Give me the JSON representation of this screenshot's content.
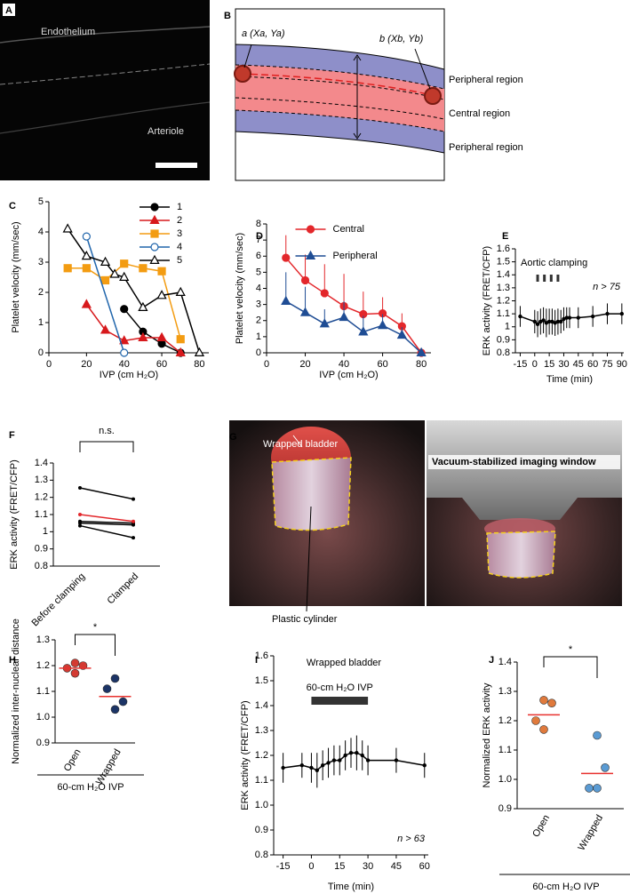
{
  "images": [
    {
      "label": "A",
      "texts": [
        "Endothelium",
        "Arteriole"
      ]
    },
    {
      "label": "B",
      "texts": [
        "a (Xa, Ya)",
        "b (Xb, Yb)",
        "Peripheral region",
        "Central region",
        "Peripheral region"
      ]
    },
    {
      "label": "G",
      "texts": [
        "Wrapped bladder",
        "Vacuum-stabilized imaging window",
        "Plastic cylinder"
      ]
    }
  ],
  "chart_data": [
    {
      "type": "line",
      "panel_label": "C",
      "xlabel": "IVP (cm H₂O)",
      "ylabel": "Platelet velocity (mm/sec)",
      "xlim": [
        0,
        85
      ],
      "xticks": [
        0,
        20,
        40,
        60,
        80
      ],
      "ylim": [
        0,
        5
      ],
      "yticks": [
        0,
        1,
        2,
        3,
        4,
        5
      ],
      "legend": "upper right",
      "series": [
        {
          "name": "1",
          "color": "#000000",
          "marker": "circle",
          "filled": true,
          "x": [
            40,
            50,
            60,
            70
          ],
          "values": [
            1.45,
            0.7,
            0.3,
            0
          ]
        },
        {
          "name": "2",
          "color": "#d7191c",
          "marker": "triangle",
          "filled": true,
          "x": [
            20,
            30,
            40,
            50,
            60,
            70
          ],
          "values": [
            1.6,
            0.75,
            0.4,
            0.5,
            0.5,
            0
          ]
        },
        {
          "name": "3",
          "color": "#f39c12",
          "marker": "square",
          "filled": true,
          "x": [
            10,
            20,
            30,
            40,
            50,
            60,
            70
          ],
          "values": [
            2.8,
            2.8,
            2.4,
            2.95,
            2.8,
            2.7,
            0.45
          ]
        },
        {
          "name": "4",
          "color": "#2166ac",
          "marker": "circle",
          "filled": false,
          "x": [
            20,
            40
          ],
          "values": [
            3.85,
            0
          ]
        },
        {
          "name": "5",
          "color": "#000000",
          "marker": "triangle",
          "filled": false,
          "x": [
            10,
            20,
            30,
            35,
            40,
            50,
            60,
            70,
            80
          ],
          "values": [
            4.1,
            3.2,
            3.0,
            2.6,
            2.5,
            1.5,
            1.9,
            2.0,
            0
          ]
        }
      ]
    },
    {
      "type": "line",
      "panel_label": "D",
      "xlabel": "IVP (cm H₂O)",
      "ylabel": "Platelet velocity (mm/sec)",
      "xlim": [
        0,
        85
      ],
      "xticks": [
        0,
        20,
        40,
        60,
        80
      ],
      "ylim": [
        0,
        8
      ],
      "yticks": [
        0,
        1,
        2,
        3,
        4,
        5,
        6,
        7,
        8
      ],
      "legend": "upper center",
      "error_direction": "up",
      "series": [
        {
          "name": "Central",
          "color": "#e3272b",
          "marker": "circle",
          "filled": true,
          "x": [
            10,
            20,
            30,
            40,
            50,
            60,
            70,
            80
          ],
          "values": [
            5.9,
            4.5,
            3.7,
            2.9,
            2.4,
            2.45,
            1.65,
            0
          ],
          "errors": [
            1.4,
            1.6,
            1.8,
            2.0,
            1.4,
            1.0,
            0.8,
            0
          ]
        },
        {
          "name": "Peripheral",
          "color": "#1f4d94",
          "marker": "triangle",
          "filled": true,
          "x": [
            10,
            20,
            30,
            40,
            50,
            60,
            70,
            80
          ],
          "values": [
            3.2,
            2.5,
            1.8,
            2.2,
            1.3,
            1.7,
            1.1,
            0
          ],
          "errors": [
            1.8,
            1.6,
            0.9,
            1.0,
            1.0,
            0.7,
            0.5,
            0
          ]
        }
      ]
    },
    {
      "type": "line",
      "panel_label": "E",
      "xlabel": "Time (min)",
      "ylabel": "ERK activity (FRET/CFP)",
      "xlim": [
        -20,
        92
      ],
      "xticks": [
        -15,
        0,
        15,
        30,
        45,
        60,
        75,
        90
      ],
      "ylim": [
        0.8,
        1.6
      ],
      "yticks": [
        0.8,
        0.9,
        1,
        1.1,
        1.2,
        1.3,
        1.4,
        1.5,
        1.6
      ],
      "event_label": "Aortic clamping",
      "event_marks": [
        3,
        10,
        17,
        24
      ],
      "n_label": "n > 75",
      "series": [
        {
          "color": "#000000",
          "marker": "dot",
          "filled": true,
          "x": [
            -15,
            0,
            3,
            6,
            9,
            12,
            15,
            18,
            21,
            24,
            27,
            30,
            33,
            36,
            45,
            60,
            75,
            90
          ],
          "values": [
            1.08,
            1.04,
            1.02,
            1.04,
            1.05,
            1.03,
            1.04,
            1.04,
            1.03,
            1.04,
            1.04,
            1.06,
            1.07,
            1.07,
            1.07,
            1.08,
            1.1,
            1.1
          ],
          "errors": [
            0.08,
            0.09,
            0.1,
            0.1,
            0.1,
            0.11,
            0.1,
            0.1,
            0.1,
            0.1,
            0.09,
            0.09,
            0.08,
            0.08,
            0.08,
            0.08,
            0.08,
            0.08
          ]
        }
      ]
    },
    {
      "type": "slope",
      "panel_label": "F",
      "ylabel": "ERK activity (FRET/CFP)",
      "categories": [
        "Before clamping",
        "Clamped"
      ],
      "ylim": [
        0.8,
        1.4
      ],
      "yticks": [
        0.8,
        0.9,
        1,
        1.1,
        1.2,
        1.3,
        1.4
      ],
      "significance": "n.s.",
      "series": [
        {
          "color": "#000000",
          "values": [
            1.255,
            1.19
          ]
        },
        {
          "color": "#000000",
          "values": [
            1.06,
            1.05
          ]
        },
        {
          "color": "#000000",
          "values": [
            1.05,
            1.04
          ]
        },
        {
          "color": "#000000",
          "values": [
            1.035,
            0.965
          ]
        },
        {
          "color": "#e3272b",
          "values": [
            1.1,
            1.06
          ]
        }
      ]
    },
    {
      "type": "strip",
      "panel_label": "H",
      "ylabel": "Normalized inter-nuclear distance",
      "categories": [
        "Open",
        "Wrapped"
      ],
      "ylim": [
        0.9,
        1.3
      ],
      "yticks": [
        {
          "value": 0.9,
          "label": "0.9"
        },
        {
          "value": 1,
          "label": "1.0"
        },
        {
          "value": 1.1,
          "label": "1.1"
        },
        {
          "value": 1.2,
          "label": "1.2"
        },
        {
          "value": 1.3,
          "label": "1.3"
        }
      ],
      "significance": "*",
      "group_label": "60-cm H₂O IVP",
      "mean_color": "#e8312e",
      "means": [
        1.19,
        1.08
      ],
      "series": [
        {
          "color": "#d33a32",
          "values": [
            1.19,
            1.21,
            1.2,
            1.17
          ]
        },
        {
          "color": "#1c3466",
          "values": [
            1.11,
            1.15,
            1.06,
            1.03
          ]
        }
      ]
    },
    {
      "type": "line",
      "panel_label": "I",
      "title": "Wrapped bladder",
      "xlabel": "Time (min)",
      "ylabel": "ERK activity (FRET/CFP)",
      "xlim": [
        -20,
        62
      ],
      "xticks": [
        -15,
        0,
        15,
        30,
        45,
        60
      ],
      "ylim": [
        0.8,
        1.6
      ],
      "yticks": [
        {
          "value": 0.8,
          "label": "0.8"
        },
        {
          "value": 0.9,
          "label": "0.9"
        },
        {
          "value": 1,
          "label": "1.0"
        },
        {
          "value": 1.1,
          "label": "1.1"
        },
        {
          "value": 1.2,
          "label": "1.2"
        },
        {
          "value": 1.3,
          "label": "1.3"
        },
        {
          "value": 1.4,
          "label": "1.4"
        },
        {
          "value": 1.5,
          "label": "1.5"
        },
        {
          "value": 1.6,
          "label": "1.6"
        }
      ],
      "event_label": "60-cm H₂O IVP",
      "event_span": [
        0,
        30
      ],
      "n_label": "n > 63",
      "series": [
        {
          "color": "#000000",
          "marker": "dot",
          "filled": true,
          "x": [
            -15,
            -5,
            0,
            3,
            6,
            9,
            12,
            15,
            18,
            21,
            24,
            27,
            30,
            45,
            60
          ],
          "values": [
            1.15,
            1.16,
            1.15,
            1.14,
            1.16,
            1.17,
            1.18,
            1.18,
            1.2,
            1.21,
            1.21,
            1.2,
            1.18,
            1.18,
            1.16
          ],
          "errors": [
            0.06,
            0.05,
            0.06,
            0.07,
            0.06,
            0.06,
            0.06,
            0.06,
            0.06,
            0.06,
            0.07,
            0.06,
            0.06,
            0.05,
            0.05
          ]
        }
      ]
    },
    {
      "type": "strip",
      "panel_label": "J",
      "ylabel": "Normalized ERK activity",
      "categories": [
        "Open",
        "Wrapped"
      ],
      "ylim": [
        0.9,
        1.4
      ],
      "yticks": [
        {
          "value": 0.9,
          "label": "0.9"
        },
        {
          "value": 1,
          "label": "1.0"
        },
        {
          "value": 1.1,
          "label": "1.1"
        },
        {
          "value": 1.2,
          "label": "1.2"
        },
        {
          "value": 1.3,
          "label": "1.3"
        },
        {
          "value": 1.4,
          "label": "1.4"
        }
      ],
      "significance": "*",
      "group_label": "60-cm H₂O IVP",
      "mean_color": "#e8312e",
      "means": [
        1.22,
        1.02
      ],
      "series": [
        {
          "color": "#e07a3c",
          "values": [
            1.2,
            1.27,
            1.26,
            1.17
          ]
        },
        {
          "color": "#5a9bd4",
          "values": [
            0.97,
            1.15,
            1.04,
            0.97
          ]
        }
      ]
    }
  ]
}
